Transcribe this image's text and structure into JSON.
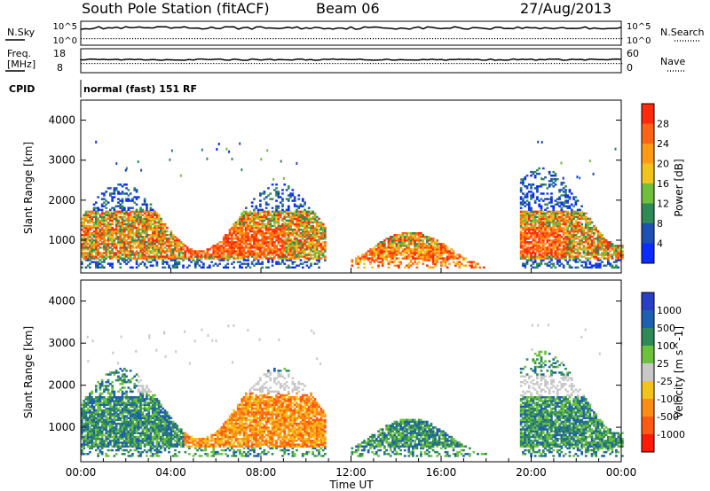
{
  "header": {
    "station": "South Pole Station (fitACF)",
    "beam": "Beam 06",
    "date": "27/Aug/2013"
  },
  "noise_panel": {
    "left_label": "N.Sky",
    "right_label": "N.Search",
    "left_ticks": [
      "10^5",
      "10^0"
    ],
    "right_ticks": [
      "10^5",
      "10^0"
    ]
  },
  "freq_panel": {
    "left_label_1": "Freq.",
    "left_label_2": "[MHz]",
    "right_label": "Nave",
    "left_ticks": [
      "18",
      "8"
    ],
    "right_ticks": [
      "60",
      "0"
    ]
  },
  "cpid": {
    "label": "CPID",
    "value": "normal (fast) 151 RF"
  },
  "chart_data": [
    {
      "type": "heatmap",
      "name": "Power",
      "ylabel": "Slant Range [km]",
      "xlabel": "Time UT",
      "y_ticks": [
        "1000",
        "2000",
        "3000",
        "4000"
      ],
      "ylim": [
        180,
        4500
      ],
      "colorbar_label": "Power [dB]",
      "colorbar_ticks": [
        "4",
        "8",
        "12",
        "16",
        "20",
        "24",
        "28"
      ],
      "colors": [
        "#0a2cff",
        "#1e4fb5",
        "#2f8a57",
        "#6fbf3a",
        "#f2c31a",
        "#ff9a14",
        "#ff6414",
        "#ff2a0a"
      ],
      "features": [
        {
          "t0": 0.0,
          "t1": 10.8,
          "r0": 300,
          "r1": 2400,
          "level": "high, peaks near 28 dB around 06:00 at 700-1200 km"
        },
        {
          "t0": 12.0,
          "t1": 18.0,
          "r0": 300,
          "r1": 1200,
          "level": "moderate to high near 500 km"
        },
        {
          "t0": 19.5,
          "t1": 24.0,
          "r0": 300,
          "r1": 2800,
          "level": "high near 20:30 at 700-1200 km"
        }
      ]
    },
    {
      "type": "heatmap",
      "name": "Velocity",
      "ylabel": "Slant Range [km]",
      "xlabel": "Time UT",
      "y_ticks": [
        "1000",
        "2000",
        "3000",
        "4000"
      ],
      "ylim": [
        180,
        4500
      ],
      "colorbar_label": "Velocity [m s^-1]",
      "colorbar_ticks": [
        "1000",
        "500",
        "100",
        "25",
        "-25",
        "-100",
        "-500",
        "-1000"
      ],
      "colors": [
        "#2a3fc8",
        "#1e5fb0",
        "#2f8a57",
        "#6cc23a",
        "#c8c8c8",
        "#f2c31a",
        "#ff8c14",
        "#ff5a14",
        "#ff1a0a"
      ],
      "features": [
        {
          "t0": 0.0,
          "t1": 4.5,
          "r0": 300,
          "r1": 2400,
          "level": "mostly 100 to 500 m/s (green)"
        },
        {
          "t0": 4.5,
          "t1": 10.8,
          "r0": 500,
          "r1": 1800,
          "level": "-100 to -500 m/s (orange)"
        },
        {
          "t0": 12.0,
          "t1": 18.0,
          "r0": 300,
          "r1": 1200,
          "level": "100 to 500 m/s (green/blue)"
        },
        {
          "t0": 19.5,
          "t1": 24.0,
          "r0": 300,
          "r1": 2800,
          "level": "mixed, grey near 2000 km"
        }
      ]
    }
  ],
  "time_axis": {
    "ticks": [
      "00:00",
      "04:00",
      "08:00",
      "12:00",
      "16:00",
      "20:00",
      "00:00"
    ],
    "label": "Time UT"
  }
}
